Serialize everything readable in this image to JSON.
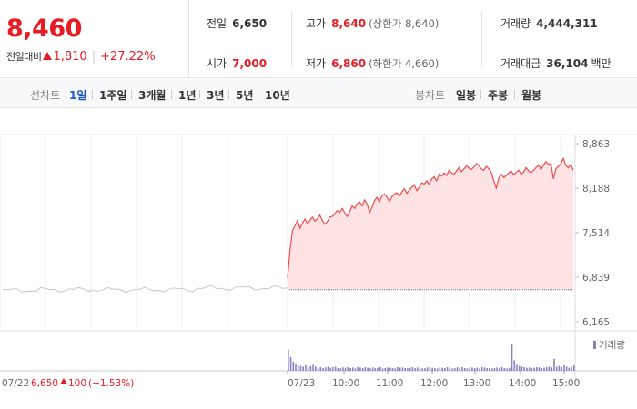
{
  "quote": {
    "price": "8,460",
    "change_label": "전일대비",
    "change": "1,810",
    "change_pct": "+27.22%",
    "up_color": "#e81b23"
  },
  "stats": {
    "prev_label": "전일",
    "prev": "6,650",
    "high_label": "고가",
    "high": "8,640",
    "upper_limit": "(상한가 8,640)",
    "volume_label": "거래량",
    "volume": "4,444,311",
    "open_label": "시가",
    "open": "7,000",
    "low_label": "저가",
    "low": "6,860",
    "lower_limit": "(하한가 4,660)",
    "amount_label": "거래대금",
    "amount": "36,104",
    "amount_unit": "백만"
  },
  "tabs": {
    "line_label": "선차트",
    "line_tabs": [
      "1일",
      "1주일",
      "3개월",
      "1년",
      "3년",
      "5년",
      "10년"
    ],
    "active": "1일",
    "candle_label": "봉차트",
    "candle_tabs": [
      "일봉",
      "주봉",
      "월봉"
    ]
  },
  "chart_data": {
    "type": "line",
    "y_ticks": [
      "8,863",
      "8,188",
      "7,514",
      "6,839",
      "6,165"
    ],
    "ylim": [
      6165,
      8863
    ],
    "prev_close": 6650,
    "x_ticks": [
      "07/23",
      "10:00",
      "11:00",
      "12:00",
      "13:00",
      "14:00",
      "15:00"
    ],
    "prev_day": {
      "date": "07/22",
      "close": "6,650",
      "change": "100",
      "change_pct": "(+1.53%)"
    },
    "volume_legend": "거래량",
    "colors": {
      "line": "#f04a4a",
      "fill": "#fde3e3",
      "prev_line": "#c8c8c8",
      "volume": "#8d7fc4"
    },
    "series": [
      {
        "values": [
          6830,
          7250,
          7550,
          7620,
          7700,
          7580,
          7660,
          7720,
          7650,
          7700,
          7750,
          7690,
          7720,
          7780,
          7700,
          7640,
          7680,
          7750,
          7760,
          7800,
          7850,
          7820,
          7880,
          7820,
          7760,
          7830,
          7920,
          7880,
          7950,
          7980,
          7920,
          8010,
          7950,
          7820,
          7900,
          8000,
          8050,
          7980,
          8070,
          8100,
          8050,
          7990,
          8060,
          8100,
          8120,
          8070,
          8130,
          8180,
          8110,
          8160,
          8200,
          8240,
          8150,
          8200,
          8270,
          8250,
          8300,
          8250,
          8330,
          8360,
          8300,
          8400,
          8370,
          8420,
          8380,
          8460,
          8420,
          8400,
          8450,
          8500,
          8440,
          8480,
          8530,
          8490,
          8470,
          8510,
          8560,
          8530,
          8480,
          8460,
          8520,
          8480,
          8430,
          8300,
          8190,
          8340,
          8400,
          8350,
          8380,
          8420,
          8450,
          8390,
          8430,
          8460,
          8400,
          8430,
          8500,
          8450,
          8420,
          8460,
          8500,
          8540,
          8470,
          8540,
          8590,
          8550,
          8560,
          8330,
          8480,
          8520,
          8560,
          8640,
          8530,
          8500,
          8550,
          8460
        ]
      }
    ],
    "volume_values": [
      70,
      45,
      30,
      22,
      18,
      16,
      14,
      18,
      12,
      15,
      20,
      14,
      10,
      12,
      9,
      11,
      13,
      10,
      12,
      14,
      9,
      8,
      11,
      10,
      12,
      9,
      11,
      8,
      13,
      10,
      9,
      12,
      10,
      8,
      11,
      9,
      10,
      12,
      8,
      9,
      11,
      10,
      9,
      8,
      12,
      10,
      11,
      9,
      8,
      10,
      12,
      9,
      11,
      10,
      8,
      9,
      11,
      13,
      10,
      9,
      8,
      11,
      10,
      9,
      12,
      10,
      8,
      9,
      11,
      10,
      12,
      9,
      8,
      10,
      11,
      9,
      10,
      8,
      12,
      11,
      9,
      10,
      8,
      9,
      11,
      10,
      12,
      9,
      8,
      10,
      90,
      35,
      20,
      16,
      14,
      12,
      10,
      11,
      9,
      10,
      12,
      11,
      9,
      10,
      12,
      14,
      11,
      40,
      13,
      16,
      12,
      18,
      14,
      10,
      12,
      18
    ]
  }
}
